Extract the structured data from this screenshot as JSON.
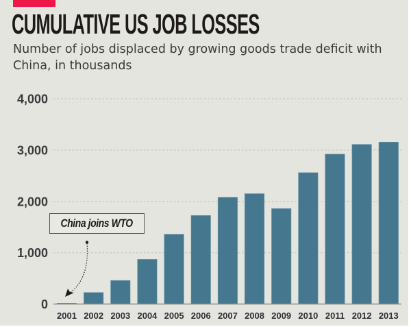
{
  "header": {
    "title": "CUMULATIVE US JOB LOSSES",
    "subtitle": "Number of jobs displaced by growing goods trade deficit with China, in thousands"
  },
  "colors": {
    "accent": "#ee1848",
    "bar": "#45788f",
    "background": "#e5e5e0",
    "gridline": "#c9c9c4",
    "axis": "#8a8a88"
  },
  "annotation": {
    "label": "China joins WTO",
    "points_to": "2001"
  },
  "chart_data": {
    "type": "bar",
    "title": "CUMULATIVE US JOB LOSSES",
    "subtitle": "Number of jobs displaced by growing goods trade deficit with China, in thousands",
    "xlabel": "",
    "ylabel": "",
    "categories": [
      "2001",
      "2002",
      "2003",
      "2004",
      "2005",
      "2006",
      "2007",
      "2008",
      "2009",
      "2010",
      "2011",
      "2012",
      "2013"
    ],
    "values": [
      0,
      225,
      460,
      870,
      1360,
      1725,
      2080,
      2150,
      1860,
      2560,
      2920,
      3110,
      3155
    ],
    "ylim": [
      0,
      4000
    ],
    "yticks": [
      0,
      1000,
      2000,
      3000,
      4000
    ],
    "ytick_labels": [
      "0",
      "1,000",
      "2,000",
      "3,000",
      "4,000"
    ],
    "grid": true,
    "grid_style": "dotted",
    "legend": "none",
    "annotations": [
      {
        "text": "China joins WTO",
        "target": "2001"
      }
    ]
  }
}
